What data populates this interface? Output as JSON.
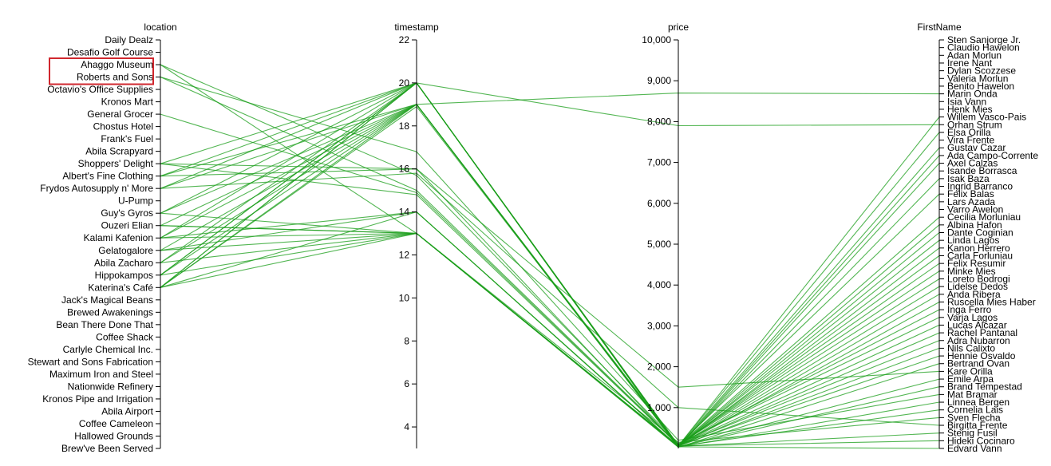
{
  "chart_data": {
    "type": "parallel-coordinates",
    "line_color": "#1a9e1a",
    "highlight_color": "#d0262d",
    "highlighted_categories": [
      "Ahaggo Museum",
      "Roberts and Sons"
    ],
    "dimensions": [
      {
        "key": "location",
        "title": "location",
        "type": "categorical",
        "categories": [
          "Daily Dealz",
          "Desafio Golf Course",
          "Ahaggo Museum",
          "Roberts and Sons",
          "Octavio's Office Supplies",
          "Kronos Mart",
          "General Grocer",
          "Chostus Hotel",
          "Frank's Fuel",
          "Abila Scrapyard",
          "Shoppers' Delight",
          "Albert's Fine Clothing",
          "Frydos Autosupply n' More",
          "U-Pump",
          "Guy's Gyros",
          "Ouzeri Elian",
          "Kalami Kafenion",
          "Gelatogalore",
          "Abila Zacharo",
          "Hippokampos",
          "Katerina's Café",
          "Jack's Magical Beans",
          "Brewed Awakenings",
          "Bean There Done That",
          "Coffee Shack",
          "Carlyle Chemical Inc.",
          "Stewart and Sons Fabrication",
          "Maximum Iron and Steel",
          "Nationwide Refinery",
          "Kronos Pipe and Irrigation",
          "Abila Airport",
          "Coffee Cameleon",
          "Hallowed Grounds",
          "Brew've Been Served"
        ]
      },
      {
        "key": "timestamp",
        "title": "timestamp",
        "type": "linear",
        "domain": [
          3,
          22
        ],
        "ticks": [
          {
            "v": 4,
            "label": "4"
          },
          {
            "v": 6,
            "label": "6"
          },
          {
            "v": 8,
            "label": "8"
          },
          {
            "v": 10,
            "label": "10"
          },
          {
            "v": 12,
            "label": "12"
          },
          {
            "v": 14,
            "label": "14"
          },
          {
            "v": 16,
            "label": "16"
          },
          {
            "v": 18,
            "label": "18"
          },
          {
            "v": 20,
            "label": "20"
          },
          {
            "v": 22,
            "label": "22"
          }
        ]
      },
      {
        "key": "price",
        "title": "price",
        "type": "linear",
        "domain": [
          0,
          10000
        ],
        "ticks": [
          {
            "v": 1000,
            "label": "1,000"
          },
          {
            "v": 2000,
            "label": "2,000"
          },
          {
            "v": 3000,
            "label": "3,000"
          },
          {
            "v": 4000,
            "label": "4,000"
          },
          {
            "v": 5000,
            "label": "5,000"
          },
          {
            "v": 6000,
            "label": "6,000"
          },
          {
            "v": 7000,
            "label": "7,000"
          },
          {
            "v": 8000,
            "label": "8,000"
          },
          {
            "v": 9000,
            "label": "9,000"
          },
          {
            "v": 10000,
            "label": "10,000"
          }
        ]
      },
      {
        "key": "FirstName",
        "title": "FirstName",
        "type": "categorical",
        "categories": [
          "Sten Sanjorge Jr.",
          "Claudio Hawelon",
          "Adan Morlun",
          "Irene Nant",
          "Dylan Scozzese",
          "Valeria Morlun",
          "Benito Hawelon",
          "Marin Onda",
          "Isia Vann",
          "Henk Mies",
          "Willem Vasco-Pais",
          "Orhan Strum",
          "Elsa Orilla",
          "Vira Frente",
          "Gustav Cazar",
          "Ada Campo-Corrente",
          "Axel Calzas",
          "Isande Borrasca",
          "Isak Baza",
          "Ingrid Barranco",
          "Felix Balas",
          "Lars Azada",
          "Varro Awelon",
          "Cecilia Morluniau",
          "Albina Hafon",
          "Dante Coginian",
          "Linda Lagos",
          "Kanon Herrero",
          "Carla Forluniau",
          "Felix Resumir",
          "Minke Mies",
          "Loreto Bodrogi",
          "Lidelse Dedos",
          "Anda Ribera",
          "Ruscella Mies Haber",
          "Inga Ferro",
          "Varja Lagos",
          "Lucas Alcazar",
          "Rachel Pantanal",
          "Adra Nubarron",
          "Nils Calixto",
          "Hennie Osvaldo",
          "Bertrand Ovan",
          "Kare Orilla",
          "Emile Arpa",
          "Brand Tempestad",
          "Mat Bramar",
          "Linnea Bergen",
          "Cornelia Lais",
          "Sven Flecha",
          "Birgitta Frente",
          "Stenig Fusil",
          "Hideki Cocinaro",
          "Edvard Vann"
        ]
      }
    ],
    "records": [
      {
        "location": "Ahaggo Museum",
        "timestamp": 15.7,
        "price": 120,
        "FirstName": "Varja Lagos"
      },
      {
        "location": "Ahaggo Museum",
        "timestamp": 13.0,
        "price": 150,
        "FirstName": "Sven Flecha"
      },
      {
        "location": "Roberts and Sons",
        "timestamp": 15.0,
        "price": 100,
        "FirstName": "Inga Ferro"
      },
      {
        "location": "Roberts and Sons",
        "timestamp": 16.8,
        "price": 200,
        "FirstName": "Mat Bramar"
      },
      {
        "location": "General Grocer",
        "timestamp": 14.9,
        "price": 90,
        "FirstName": "Loreto Bodrogi"
      },
      {
        "location": "Shoppers' Delight",
        "timestamp": 20.0,
        "price": 60,
        "FirstName": "Willem Vasco-Pais"
      },
      {
        "location": "Shoppers' Delight",
        "timestamp": 14.8,
        "price": 80,
        "FirstName": "Felix Balas"
      },
      {
        "location": "Albert's Fine Clothing",
        "timestamp": 16.0,
        "price": 1500,
        "FirstName": "Kare Orilla"
      },
      {
        "location": "Albert's Fine Clothing",
        "timestamp": 19.0,
        "price": 8700,
        "FirstName": "Marin Onda"
      },
      {
        "location": "Frydos Autosupply n' More",
        "timestamp": 20.0,
        "price": 7900,
        "FirstName": "Orhan Strum"
      },
      {
        "location": "Frydos Autosupply n' More",
        "timestamp": 15.8,
        "price": 1000,
        "FirstName": "Birgitta Frente"
      },
      {
        "location": "Guy's Gyros",
        "timestamp": 19.0,
        "price": 50,
        "FirstName": "Gustav Cazar"
      },
      {
        "location": "Guy's Gyros",
        "timestamp": 20.0,
        "price": 70,
        "FirstName": "Lucas Alcazar"
      },
      {
        "location": "Ouzeri Elian",
        "timestamp": 19.0,
        "price": 40,
        "FirstName": "Ada Campo-Corrente"
      },
      {
        "location": "Ouzeri Elian",
        "timestamp": 13.0,
        "price": 60,
        "FirstName": "Linda Lagos"
      },
      {
        "location": "Kalami Kafenion",
        "timestamp": 20.0,
        "price": 50,
        "FirstName": "Dante Coginian"
      },
      {
        "location": "Kalami Kafenion",
        "timestamp": 13.0,
        "price": 70,
        "FirstName": "Hennie Osvaldo"
      },
      {
        "location": "Kalami Kafenion",
        "timestamp": 14.0,
        "price": 40,
        "FirstName": "Emile Arpa"
      },
      {
        "location": "Gelatogalore",
        "timestamp": 19.0,
        "price": 30,
        "FirstName": "Axel Calzas"
      },
      {
        "location": "Gelatogalore",
        "timestamp": 13.0,
        "price": 40,
        "FirstName": "Edvard Vann"
      },
      {
        "location": "Abila Zacharo",
        "timestamp": 20.0,
        "price": 60,
        "FirstName": "Elsa Orilla"
      },
      {
        "location": "Abila Zacharo",
        "timestamp": 13.0,
        "price": 50,
        "FirstName": "Cornelia Lais"
      },
      {
        "location": "Hippokampos",
        "timestamp": 20.0,
        "price": 70,
        "FirstName": "Cecilia Morluniau"
      },
      {
        "location": "Hippokampos",
        "timestamp": 19.0,
        "price": 60,
        "FirstName": "Rachel Pantanal"
      },
      {
        "location": "Hippokampos",
        "timestamp": 13.0,
        "price": 50,
        "FirstName": "Nils Calixto"
      },
      {
        "location": "Katerina's Café",
        "timestamp": 20.0,
        "price": 80,
        "FirstName": "Felix Resumir"
      },
      {
        "location": "Katerina's Café",
        "timestamp": 19.0,
        "price": 90,
        "FirstName": "Minke Mies"
      },
      {
        "location": "Katerina's Café",
        "timestamp": 14.0,
        "price": 50,
        "FirstName": "Stenig Fusil"
      },
      {
        "location": "Katerina's Café",
        "timestamp": 13.0,
        "price": 60,
        "FirstName": "Hideki Cocinaro"
      },
      {
        "location": "Katerina's Café",
        "timestamp": 18.9,
        "price": 70,
        "FirstName": "Carla Forluniau"
      },
      {
        "location": "Albert's Fine Clothing",
        "timestamp": 20.0,
        "price": 40,
        "FirstName": "Brand Tempestad"
      },
      {
        "location": "Frydos Autosupply n' More",
        "timestamp": 19.0,
        "price": 50,
        "FirstName": "Isak Baza"
      },
      {
        "location": "Kalami Kafenion",
        "timestamp": 19.0,
        "price": 45,
        "FirstName": "Kanon Herrero"
      },
      {
        "location": "Guy's Gyros",
        "timestamp": 13.0,
        "price": 55,
        "FirstName": "Anda Ribera"
      },
      {
        "location": "Abila Zacharo",
        "timestamp": 19.0,
        "price": 65,
        "FirstName": "Lidelse Dedos"
      },
      {
        "location": "Gelatogalore",
        "timestamp": 14.0,
        "price": 35,
        "FirstName": "Linnea Bergen"
      },
      {
        "location": "Hippokampos",
        "timestamp": 20.0,
        "price": 45,
        "FirstName": "Ruscella Mies Haber"
      },
      {
        "location": "Ouzeri Elian",
        "timestamp": 13.0,
        "price": 30,
        "FirstName": "Bertrand Ovan"
      },
      {
        "location": "Katerina's Café",
        "timestamp": 20.0,
        "price": 75,
        "FirstName": "Adra Nubarron"
      },
      {
        "location": "Shoppers' Delight",
        "timestamp": 16.0,
        "price": 60,
        "FirstName": "Albina Hafon"
      }
    ]
  }
}
